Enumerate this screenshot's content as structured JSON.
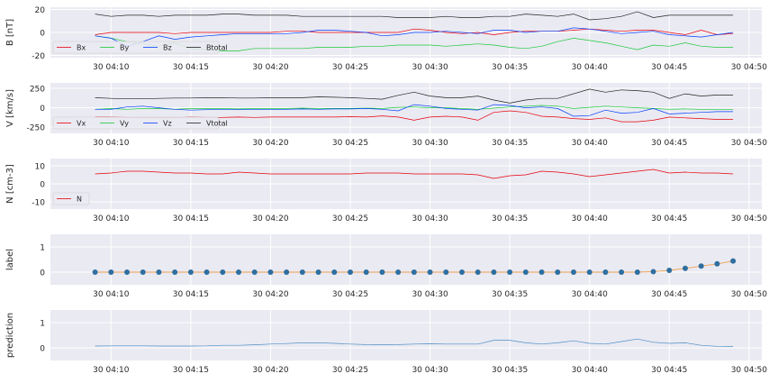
{
  "chart_data": [
    {
      "type": "line",
      "ylabel": "B [nT]",
      "ylim": [
        -22,
        22
      ],
      "yticks": [
        -20,
        0,
        20
      ],
      "legend": "bottom-left",
      "series": [
        {
          "name": "Bx",
          "color": "#e8000b",
          "values": [
            -2,
            0,
            0,
            0,
            0,
            -1,
            0,
            0,
            0,
            0,
            0,
            0,
            1,
            1,
            0,
            0,
            0,
            0,
            0,
            0,
            3,
            2,
            0,
            -1,
            0,
            -2,
            0,
            1,
            1,
            1,
            2,
            3,
            2,
            1,
            2,
            2,
            0,
            -2,
            2,
            -2,
            -1
          ]
        },
        {
          "name": "By",
          "color": "#1ac938",
          "values": [
            -3,
            -5,
            -8,
            -10,
            -12,
            -9,
            -14,
            -15,
            -16,
            -16,
            -14,
            -14,
            -14,
            -14,
            -13,
            -13,
            -13,
            -12,
            -12,
            -11,
            -11,
            -11,
            -12,
            -11,
            -10,
            -11,
            -13,
            -14,
            -12,
            -8,
            -5,
            -7,
            -9,
            -12,
            -15,
            -11,
            -12,
            -9,
            -12,
            -13,
            -13
          ]
        },
        {
          "name": "Bz",
          "color": "#023eff",
          "values": [
            -3,
            -5,
            -12,
            -8,
            -3,
            -6,
            -4,
            -3,
            -2,
            -1,
            -1,
            -1,
            -1,
            0,
            2,
            2,
            1,
            0,
            -3,
            -2,
            0,
            0,
            1,
            0,
            -1,
            2,
            2,
            0,
            1,
            1,
            4,
            3,
            1,
            -1,
            0,
            1,
            -2,
            -3,
            -4,
            -2,
            0
          ]
        },
        {
          "name": "Btotal",
          "color": "#222222",
          "values": [
            16,
            14,
            15,
            15,
            14,
            15,
            15,
            15,
            16,
            16,
            15,
            15,
            15,
            14,
            14,
            14,
            14,
            14,
            14,
            13,
            13,
            13,
            14,
            13,
            13,
            14,
            14,
            16,
            15,
            14,
            16,
            11,
            12,
            14,
            18,
            13,
            15,
            15,
            15,
            15,
            15
          ]
        }
      ]
    },
    {
      "type": "line",
      "ylabel": "V [km/s]",
      "ylim": [
        -330,
        320
      ],
      "yticks": [
        -250,
        0,
        250
      ],
      "legend": "bottom-left",
      "series": [
        {
          "name": "Vx",
          "color": "#e8000b",
          "values": [
            -120,
            -120,
            -125,
            -130,
            -130,
            -130,
            -120,
            -125,
            -125,
            -120,
            -125,
            -120,
            -120,
            -120,
            -120,
            -120,
            -115,
            -120,
            -105,
            -120,
            -160,
            -120,
            -110,
            -120,
            -160,
            -60,
            -40,
            -60,
            -110,
            -120,
            -140,
            -150,
            -130,
            -180,
            -180,
            -160,
            -120,
            -130,
            -140,
            -150,
            -150
          ]
        },
        {
          "name": "Vy",
          "color": "#1ac938",
          "values": [
            -20,
            -10,
            -20,
            -10,
            -10,
            -20,
            -10,
            -10,
            -10,
            -15,
            -10,
            -10,
            -10,
            -5,
            -10,
            -10,
            -10,
            -5,
            -10,
            5,
            10,
            0,
            0,
            -10,
            -20,
            -5,
            10,
            20,
            30,
            20,
            -10,
            5,
            20,
            10,
            0,
            -10,
            -20,
            -15,
            -20,
            -25,
            -25
          ]
        },
        {
          "name": "Vz",
          "color": "#023eff",
          "values": [
            -20,
            -20,
            10,
            20,
            0,
            -20,
            -30,
            -25,
            -25,
            -25,
            -25,
            -20,
            -20,
            -15,
            -20,
            -15,
            -15,
            -10,
            -20,
            -40,
            40,
            20,
            -10,
            -20,
            -30,
            40,
            30,
            0,
            10,
            -10,
            -110,
            -100,
            -30,
            -70,
            -60,
            -10,
            -80,
            -70,
            -60,
            -50,
            -50
          ]
        },
        {
          "name": "Vtotal",
          "color": "#222222",
          "values": [
            130,
            120,
            115,
            115,
            120,
            125,
            125,
            130,
            130,
            125,
            125,
            130,
            130,
            130,
            140,
            135,
            130,
            120,
            110,
            160,
            200,
            150,
            130,
            130,
            150,
            100,
            60,
            100,
            120,
            120,
            180,
            240,
            200,
            230,
            220,
            200,
            120,
            180,
            150,
            165,
            165
          ]
        }
      ]
    },
    {
      "type": "line",
      "ylabel": "N [cm-3]",
      "ylim": [
        -14,
        14
      ],
      "yticks": [
        -10,
        0,
        10
      ],
      "legend": "bottom-left",
      "series": [
        {
          "name": "N",
          "color": "#e8000b",
          "values": [
            5.5,
            6,
            7,
            7,
            6.5,
            6,
            6,
            5.5,
            5.5,
            6.5,
            6,
            5.5,
            5.5,
            5.5,
            5.5,
            5.5,
            5.5,
            6,
            6,
            6,
            5.5,
            5.5,
            5.5,
            5.5,
            5,
            3,
            4.5,
            5,
            7,
            6.5,
            5.5,
            4,
            5,
            6,
            7,
            8,
            6,
            6.5,
            6,
            6,
            5.5
          ]
        }
      ]
    },
    {
      "type": "scatter",
      "ylabel": "label",
      "ylim": [
        -0.5,
        1.5
      ],
      "yticks": [
        0,
        1
      ],
      "series": [
        {
          "color": "#2f6f9f",
          "values": [
            0,
            0,
            0,
            0,
            0,
            0,
            0,
            0,
            0,
            0,
            0,
            0,
            0,
            0,
            0,
            0,
            0,
            0,
            0,
            0,
            0,
            0,
            0,
            0,
            0,
            0,
            0,
            0,
            0,
            0,
            0,
            0,
            0,
            0,
            0,
            0.02,
            0.07,
            0.15,
            0.24,
            0.33,
            0.44
          ]
        }
      ]
    },
    {
      "type": "line",
      "ylabel": "prediction",
      "ylim": [
        -0.5,
        1.5
      ],
      "yticks": [
        0,
        1
      ],
      "series": [
        {
          "color": "#4c8ec7",
          "values": [
            0.07,
            0.08,
            0.08,
            0.08,
            0.07,
            0.07,
            0.07,
            0.08,
            0.1,
            0.1,
            0.12,
            0.15,
            0.17,
            0.2,
            0.2,
            0.18,
            0.15,
            0.13,
            0.12,
            0.13,
            0.15,
            0.16,
            0.15,
            0.15,
            0.15,
            0.3,
            0.3,
            0.2,
            0.15,
            0.2,
            0.28,
            0.18,
            0.15,
            0.25,
            0.35,
            0.22,
            0.18,
            0.2,
            0.1,
            0.06,
            0.05
          ]
        }
      ]
    }
  ],
  "x_axis": {
    "start_time": "30 04:09",
    "step_minutes": 1,
    "xlim_minutes": [
      -2.8,
      41.8
    ],
    "ticks": [
      {
        "label": "30 04:10",
        "minute": 1
      },
      {
        "label": "30 04:15",
        "minute": 6
      },
      {
        "label": "30 04:20",
        "minute": 11
      },
      {
        "label": "30 04:25",
        "minute": 16
      },
      {
        "label": "30 04:30",
        "minute": 21
      },
      {
        "label": "30 04:35",
        "minute": 26
      },
      {
        "label": "30 04:40",
        "minute": 31
      },
      {
        "label": "30 04:45",
        "minute": 36
      },
      {
        "label": "30 04:50",
        "minute": 41
      }
    ]
  },
  "style": {
    "panel_bg": "#eaeaf2",
    "grid_color": "#ffffff",
    "text_color": "#262626"
  }
}
